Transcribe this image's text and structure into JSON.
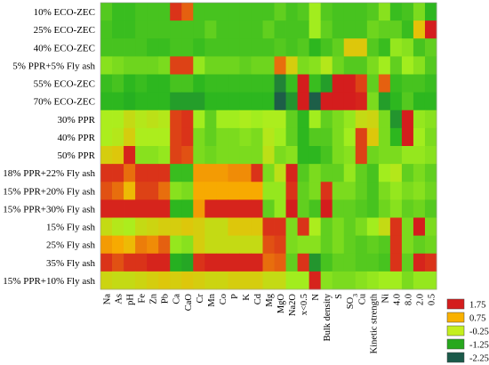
{
  "chart_data": {
    "type": "heatmap",
    "title": "",
    "rows": [
      "10% ECO-ZEC",
      "25% ECO-ZEC",
      "40% ECO-ZEC",
      "5% PPR+5% Fly ash",
      "55% ECO-ZEC",
      "70% ECO-ZEC",
      "30% PPR",
      "40% PPR",
      "50% PPR",
      "18% PPR+22% Fly ash",
      "15% PPR+20% Fly ash",
      "15% PPR+30% Fly ash",
      "15% Fly ash",
      "25% Fly ash",
      "35% Fly ash",
      "15% PPR+10% Fly ash"
    ],
    "columns": [
      "Na",
      "As",
      "pH",
      "Fe",
      "Zn",
      "Pb",
      "Ca",
      "CaO",
      "Cr",
      "Mn",
      "Co",
      "P",
      "K",
      "Cd",
      "Mg",
      "MgO",
      "Na2O",
      "x<0.5",
      "N",
      "Bulk density",
      "S",
      "SO3",
      "Cu",
      "Kinetic strength",
      "Ni",
      "4.0",
      "8.0",
      "2.0",
      "0.5"
    ],
    "values": [
      [
        -0.9,
        -1.1,
        -1.1,
        -1.0,
        -1.0,
        -1.0,
        1.6,
        1.3,
        -1.0,
        -1.0,
        -1.0,
        -1.0,
        -1.0,
        -1.0,
        -1.0,
        -0.8,
        -1.0,
        -0.9,
        -0.3,
        -0.9,
        -1.0,
        -1.0,
        -1.0,
        -0.9,
        -0.5,
        -1.1,
        -1.0,
        -0.6,
        -1.2
      ],
      [
        -1.0,
        -1.1,
        -1.1,
        -1.0,
        -1.0,
        -1.0,
        -1.0,
        -1.0,
        -1.0,
        -0.8,
        -1.0,
        -1.0,
        -1.0,
        -1.0,
        -0.8,
        -1.0,
        -1.0,
        -1.0,
        -0.3,
        -0.8,
        -1.0,
        -1.0,
        -1.0,
        -0.7,
        -0.8,
        -0.8,
        -1.1,
        0.5,
        2.1
      ],
      [
        -1.0,
        -1.0,
        -1.0,
        -1.0,
        -1.1,
        -1.1,
        -1.0,
        -1.0,
        -1.1,
        -1.0,
        -1.0,
        -1.0,
        -1.0,
        -1.0,
        -1.0,
        -0.9,
        -1.0,
        -0.9,
        -1.2,
        -1.0,
        -0.8,
        0.4,
        0.4,
        -0.9,
        -1.1,
        -0.4,
        -0.5,
        -1.0,
        -0.8
      ],
      [
        -0.5,
        -0.6,
        -0.7,
        -0.7,
        -0.7,
        -0.6,
        1.5,
        1.5,
        -0.4,
        -0.7,
        -0.7,
        -0.7,
        -0.8,
        -0.7,
        -0.7,
        1.2,
        0.3,
        -0.6,
        -0.5,
        -0.1,
        -0.7,
        -0.9,
        -0.9,
        -0.6,
        -0.3,
        -0.8,
        -0.3,
        -0.5,
        -0.9
      ],
      [
        -1.1,
        -1.0,
        -1.2,
        -1.1,
        -1.2,
        -1.2,
        -1.0,
        -1.0,
        -1.2,
        -1.1,
        -1.1,
        -1.1,
        -1.1,
        -1.1,
        -1.1,
        -1.8,
        -1.1,
        1.9,
        -1.1,
        -1.5,
        1.9,
        2.1,
        1.5,
        -0.8,
        1.3,
        -1.1,
        -1.0,
        -1.0,
        -1.1
      ],
      [
        -1.2,
        -1.2,
        -1.3,
        -1.2,
        -1.2,
        -1.2,
        -1.5,
        -1.5,
        -1.5,
        -1.2,
        -1.2,
        -1.2,
        -1.2,
        -1.2,
        -1.2,
        -2.2,
        -1.6,
        1.8,
        -2.2,
        1.9,
        1.8,
        1.8,
        1.7,
        -0.6,
        -1.5,
        -1.2,
        -0.9,
        -1.2,
        -1.2
      ],
      [
        -0.2,
        -0.2,
        0.1,
        -0.1,
        0.0,
        -0.1,
        1.5,
        1.6,
        -0.3,
        -0.8,
        -0.3,
        -0.3,
        -0.2,
        -0.3,
        -0.2,
        -0.2,
        -0.8,
        -1.2,
        -0.3,
        -0.8,
        -0.6,
        -0.4,
        0.1,
        0.2,
        -0.6,
        -1.6,
        1.8,
        -0.4,
        -0.5
      ],
      [
        -0.2,
        -0.1,
        0.3,
        -0.2,
        -0.2,
        -0.2,
        1.5,
        1.6,
        -0.6,
        -0.8,
        -0.6,
        -0.6,
        -0.5,
        -0.6,
        -0.1,
        -0.3,
        -0.8,
        -1.2,
        -0.9,
        -0.9,
        -0.6,
        -0.3,
        1.5,
        0.4,
        -0.6,
        -1.2,
        1.8,
        -0.3,
        -0.6
      ],
      [
        0.3,
        0.4,
        1.7,
        -0.5,
        -0.5,
        -0.4,
        1.5,
        1.4,
        -0.6,
        -0.7,
        -0.6,
        -0.6,
        -0.6,
        -0.6,
        0.0,
        -0.6,
        -0.5,
        -1.2,
        -1.2,
        -1.0,
        -0.6,
        -0.5,
        1.5,
        -0.7,
        -0.6,
        -0.6,
        -0.4,
        -0.4,
        -0.5
      ],
      [
        1.6,
        1.6,
        1.2,
        1.6,
        1.6,
        1.6,
        -1.1,
        -1.1,
        0.9,
        0.9,
        0.9,
        1.0,
        1.0,
        1.6,
        -0.6,
        0.0,
        1.7,
        -0.9,
        -0.6,
        -0.8,
        -0.8,
        -0.4,
        -0.8,
        -1.0,
        -0.3,
        -0.1,
        -0.8,
        -0.6,
        -0.8
      ],
      [
        1.4,
        1.2,
        0.6,
        1.5,
        1.5,
        1.2,
        -0.5,
        -0.6,
        0.8,
        0.8,
        0.8,
        0.8,
        0.8,
        0.8,
        -0.4,
        -0.4,
        1.6,
        -0.8,
        -0.6,
        1.6,
        -0.6,
        -0.6,
        -0.8,
        -1.0,
        -0.6,
        -0.4,
        -0.6,
        -0.5,
        -0.7
      ],
      [
        1.7,
        1.7,
        1.7,
        1.7,
        1.7,
        1.7,
        -1.2,
        -1.2,
        0.9,
        1.7,
        1.7,
        1.7,
        1.7,
        1.7,
        -0.8,
        -0.4,
        2.1,
        -0.8,
        -1.0,
        1.8,
        -0.8,
        -0.8,
        -0.9,
        -1.0,
        -0.7,
        -0.5,
        -0.8,
        -0.7,
        -0.9
      ],
      [
        0.1,
        -0.1,
        -0.2,
        0.1,
        0.2,
        0.3,
        0.3,
        0.4,
        0.3,
        0.1,
        0.1,
        0.4,
        0.4,
        0.4,
        1.6,
        1.6,
        -0.6,
        1.6,
        -0.2,
        -0.8,
        -0.6,
        -0.8,
        -0.6,
        -0.3,
        0.1,
        1.6,
        -0.6,
        2.1,
        -0.6
      ],
      [
        0.9,
        0.8,
        0.6,
        1.1,
        1.0,
        1.3,
        -0.4,
        -0.5,
        0.3,
        0.1,
        0.1,
        0.1,
        0.1,
        0.1,
        1.4,
        1.5,
        -0.6,
        -0.5,
        -0.5,
        -0.8,
        -0.6,
        -0.8,
        -0.9,
        -0.8,
        -0.9,
        1.6,
        -0.6,
        -0.8,
        -0.7
      ],
      [
        1.6,
        1.4,
        1.6,
        1.6,
        1.7,
        1.7,
        -1.3,
        -1.4,
        1.6,
        1.7,
        1.7,
        1.7,
        1.7,
        1.7,
        1.2,
        1.3,
        -0.8,
        1.6,
        -1.6,
        -1.0,
        -0.8,
        -0.8,
        -0.9,
        -0.9,
        -1.0,
        1.6,
        -0.8,
        1.7,
        1.6
      ],
      [
        0.2,
        0.1,
        0.1,
        0.2,
        0.3,
        0.4,
        0.3,
        0.4,
        0.3,
        0.2,
        0.2,
        0.3,
        0.3,
        0.3,
        0.1,
        0.1,
        -0.3,
        -0.3,
        1.7,
        -0.5,
        -0.6,
        -0.6,
        -0.5,
        -0.4,
        -0.3,
        -0.3,
        -0.6,
        -0.4,
        -0.4
      ]
    ],
    "color_scale": [
      {
        "value": -2.25,
        "color": "#1c5a4a"
      },
      {
        "value": -1.25,
        "color": "#26b41f"
      },
      {
        "value": -0.25,
        "color": "#a8f01e"
      },
      {
        "value": 0.75,
        "color": "#f9b100"
      },
      {
        "value": 1.75,
        "color": "#d41d1d"
      }
    ],
    "legend": {
      "placement": "bottom-right",
      "entries": [
        {
          "label": "1.75",
          "color": "#d41d1d"
        },
        {
          "label": "0.75",
          "color": "#f9b100"
        },
        {
          "label": "-0.25",
          "color": "#c4ef1e"
        },
        {
          "label": "-1.25",
          "color": "#27a81d"
        },
        {
          "label": "-2.25",
          "color": "#1b5a4a"
        }
      ]
    }
  }
}
